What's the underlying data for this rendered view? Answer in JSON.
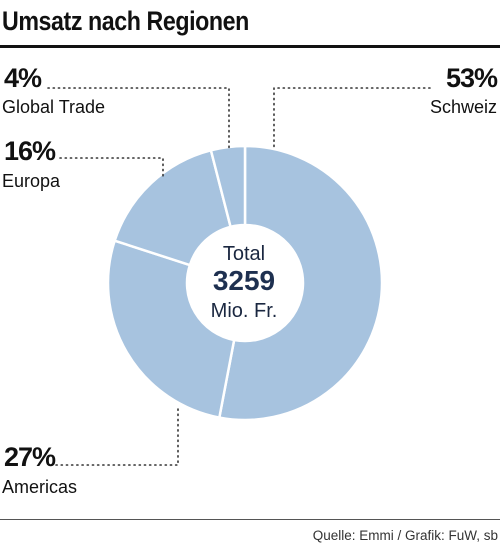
{
  "header": {
    "title": "Umsatz nach Regionen"
  },
  "footer": {
    "source": "Quelle: Emmi / Grafik: FuW, sb"
  },
  "chart_data": {
    "type": "pie",
    "donut": true,
    "title": "Umsatz nach Regionen",
    "center": {
      "line1": "Total",
      "value": "3259",
      "line3": "Mio. Fr."
    },
    "slices": [
      {
        "label": "Schweiz",
        "value": 53,
        "pct_label": "53%"
      },
      {
        "label": "Americas",
        "value": 27,
        "pct_label": "27%"
      },
      {
        "label": "Europa",
        "value": 16,
        "pct_label": "16%"
      },
      {
        "label": "Global Trade",
        "value": 4,
        "pct_label": "4%"
      }
    ],
    "colors": {
      "slice": "#a7c3df",
      "separator": "#ffffff",
      "text": "#111111",
      "center_text": "#1e3050"
    }
  }
}
